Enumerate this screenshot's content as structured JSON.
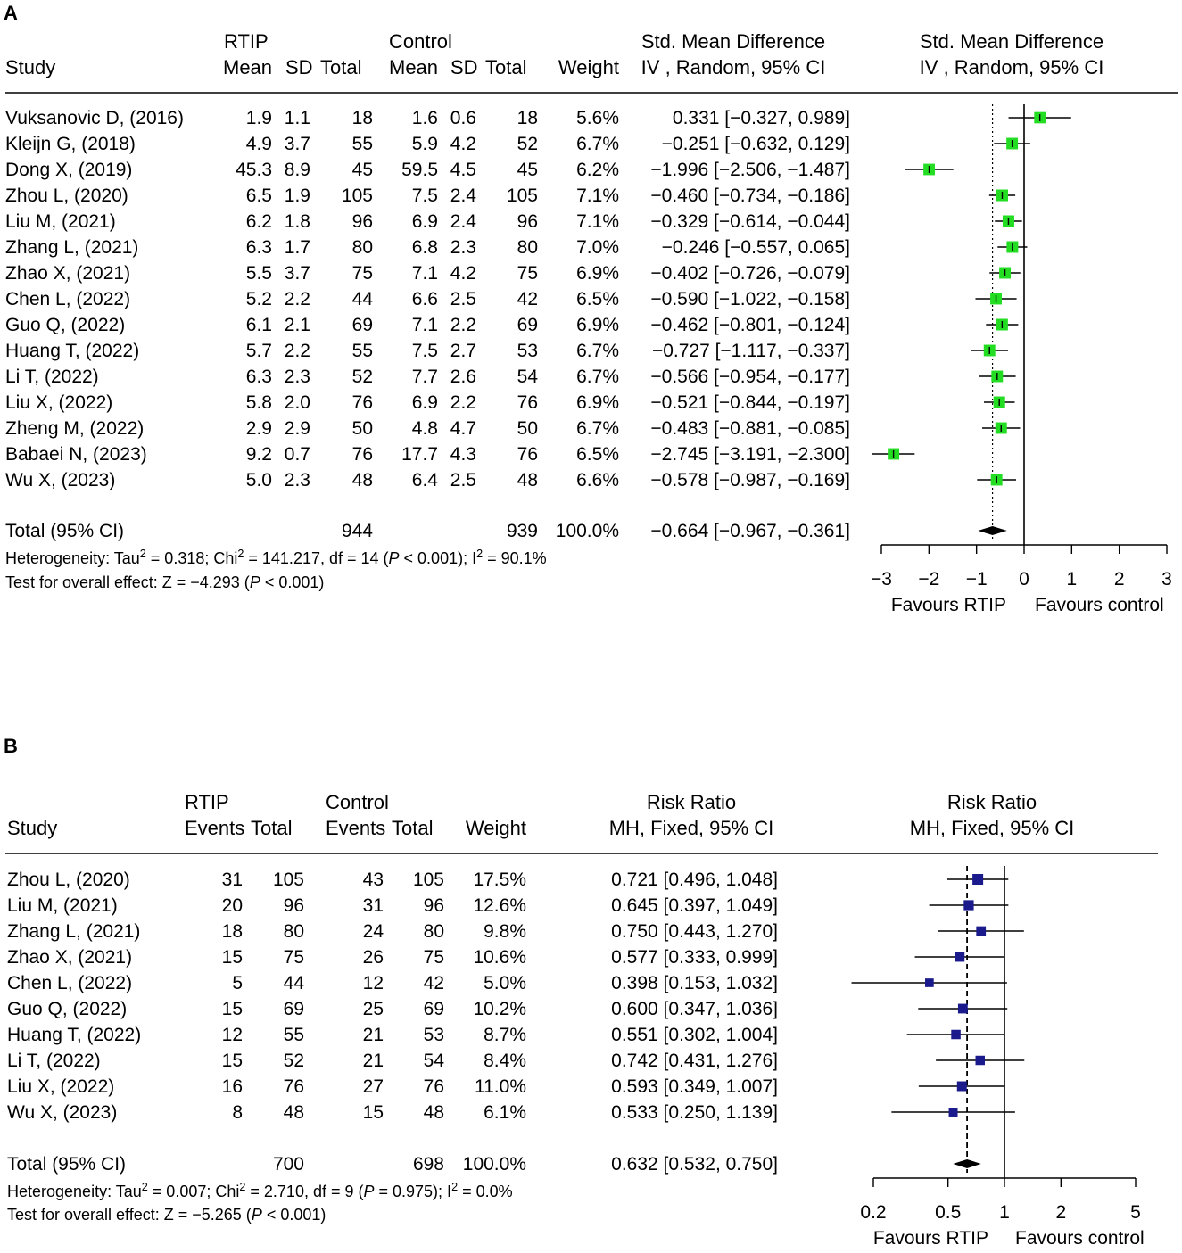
{
  "chart_data": [
    {
      "type": "forest",
      "panel_label": "A",
      "effect_measure": "Std. Mean Difference",
      "method": "IV, Random, 95% CI",
      "scale": "linear",
      "headers": {
        "group1": "RTIP",
        "group2": "Control",
        "study": "Study",
        "mean": "Mean",
        "sd": "SD",
        "total": "Total",
        "weight": "Weight",
        "effect_title": "Std. Mean Difference",
        "effect_sub": "IV , Random, 95% CI",
        "plot_title": "Std. Mean Difference",
        "plot_sub": "IV , Random, 95% CI"
      },
      "studies": [
        {
          "study": "Vuksanovic D, (2016)",
          "m1": "1.9",
          "sd1": "1.1",
          "n1": "18",
          "m2": "1.6",
          "sd2": "0.6",
          "n2": "18",
          "weight": "5.6%",
          "ci_text": "0.331 [−0.327,  0.989]",
          "est": 0.331,
          "lo": -0.327,
          "hi": 0.989,
          "w": 5.6
        },
        {
          "study": "Kleijn G, (2018)",
          "m1": "4.9",
          "sd1": "3.7",
          "n1": "55",
          "m2": "5.9",
          "sd2": "4.2",
          "n2": "52",
          "weight": "6.7%",
          "ci_text": "−0.251 [−0.632,  0.129]",
          "est": -0.251,
          "lo": -0.632,
          "hi": 0.129,
          "w": 6.7
        },
        {
          "study": "Dong X, (2019)",
          "m1": "45.3",
          "sd1": "8.9",
          "n1": "45",
          "m2": "59.5",
          "sd2": "4.5",
          "n2": "45",
          "weight": "6.2%",
          "ci_text": "−1.996 [−2.506, −1.487]",
          "est": -1.996,
          "lo": -2.506,
          "hi": -1.487,
          "w": 6.2
        },
        {
          "study": "Zhou L, (2020)",
          "m1": "6.5",
          "sd1": "1.9",
          "n1": "105",
          "m2": "7.5",
          "sd2": "2.4",
          "n2": "105",
          "weight": "7.1%",
          "ci_text": "−0.460 [−0.734, −0.186]",
          "est": -0.46,
          "lo": -0.734,
          "hi": -0.186,
          "w": 7.1
        },
        {
          "study": "Liu M, (2021)",
          "m1": "6.2",
          "sd1": "1.8",
          "n1": "96",
          "m2": "6.9",
          "sd2": "2.4",
          "n2": "96",
          "weight": "7.1%",
          "ci_text": "−0.329 [−0.614, −0.044]",
          "est": -0.329,
          "lo": -0.614,
          "hi": -0.044,
          "w": 7.1
        },
        {
          "study": "Zhang L, (2021)",
          "m1": "6.3",
          "sd1": "1.7",
          "n1": "80",
          "m2": "6.8",
          "sd2": "2.3",
          "n2": "80",
          "weight": "7.0%",
          "ci_text": "−0.246 [−0.557,  0.065]",
          "est": -0.246,
          "lo": -0.557,
          "hi": 0.065,
          "w": 7.0
        },
        {
          "study": "Zhao X, (2021)",
          "m1": "5.5",
          "sd1": "3.7",
          "n1": "75",
          "m2": "7.1",
          "sd2": "4.2",
          "n2": "75",
          "weight": "6.9%",
          "ci_text": "−0.402 [−0.726, −0.079]",
          "est": -0.402,
          "lo": -0.726,
          "hi": -0.079,
          "w": 6.9
        },
        {
          "study": "Chen L, (2022)",
          "m1": "5.2",
          "sd1": "2.2",
          "n1": "44",
          "m2": "6.6",
          "sd2": "2.5",
          "n2": "42",
          "weight": "6.5%",
          "ci_text": "−0.590 [−1.022, −0.158]",
          "est": -0.59,
          "lo": -1.022,
          "hi": -0.158,
          "w": 6.5
        },
        {
          "study": "Guo Q, (2022)",
          "m1": "6.1",
          "sd1": "2.1",
          "n1": "69",
          "m2": "7.1",
          "sd2": "2.2",
          "n2": "69",
          "weight": "6.9%",
          "ci_text": "−0.462 [−0.801, −0.124]",
          "est": -0.462,
          "lo": -0.801,
          "hi": -0.124,
          "w": 6.9
        },
        {
          "study": "Huang T, (2022)",
          "m1": "5.7",
          "sd1": "2.2",
          "n1": "55",
          "m2": "7.5",
          "sd2": "2.7",
          "n2": "53",
          "weight": "6.7%",
          "ci_text": "−0.727 [−1.117, −0.337]",
          "est": -0.727,
          "lo": -1.117,
          "hi": -0.337,
          "w": 6.7
        },
        {
          "study": "Li T, (2022)",
          "m1": "6.3",
          "sd1": "2.3",
          "n1": "52",
          "m2": "7.7",
          "sd2": "2.6",
          "n2": "54",
          "weight": "6.7%",
          "ci_text": "−0.566 [−0.954, −0.177]",
          "est": -0.566,
          "lo": -0.954,
          "hi": -0.177,
          "w": 6.7
        },
        {
          "study": "Liu X, (2022)",
          "m1": "5.8",
          "sd1": "2.0",
          "n1": "76",
          "m2": "6.9",
          "sd2": "2.2",
          "n2": "76",
          "weight": "6.9%",
          "ci_text": "−0.521 [−0.844, −0.197]",
          "est": -0.521,
          "lo": -0.844,
          "hi": -0.197,
          "w": 6.9
        },
        {
          "study": "Zheng M, (2022)",
          "m1": "2.9",
          "sd1": "2.9",
          "n1": "50",
          "m2": "4.8",
          "sd2": "4.7",
          "n2": "50",
          "weight": "6.7%",
          "ci_text": "−0.483 [−0.881, −0.085]",
          "est": -0.483,
          "lo": -0.881,
          "hi": -0.085,
          "w": 6.7
        },
        {
          "study": "Babaei N, (2023)",
          "m1": "9.2",
          "sd1": "0.7",
          "n1": "76",
          "m2": "17.7",
          "sd2": "4.3",
          "n2": "76",
          "weight": "6.5%",
          "ci_text": "−2.745 [−3.191, −2.300]",
          "est": -2.745,
          "lo": -3.191,
          "hi": -2.3,
          "w": 6.5
        },
        {
          "study": "Wu X, (2023)",
          "m1": "5.0",
          "sd1": "2.3",
          "n1": "48",
          "m2": "6.4",
          "sd2": "2.5",
          "n2": "48",
          "weight": "6.6%",
          "ci_text": "−0.578 [−0.987, −0.169]",
          "est": -0.578,
          "lo": -0.987,
          "hi": -0.169,
          "w": 6.6
        }
      ],
      "total": {
        "label": "Total (95% CI)",
        "n1": "944",
        "n2": "939",
        "weight": "100.0%",
        "ci_text": "−0.664 [−0.967, −0.361]",
        "est": -0.664,
        "lo": -0.967,
        "hi": -0.361
      },
      "heterogeneity": {
        "label": "Heterogeneity:",
        "tau2": "0.318",
        "chi2": "141.217",
        "df": "14",
        "p": "0.001",
        "i2": "90.1%"
      },
      "overall": {
        "label": "Test for overall effect:",
        "z": "−4.293",
        "p": "0.001"
      },
      "axis": {
        "min": -3,
        "max": 3,
        "ticks": [
          -3,
          -2,
          -1,
          0,
          1,
          2,
          3
        ],
        "tick_labels": [
          "−3",
          "−2",
          "−1",
          "0",
          "1",
          "2",
          "3"
        ]
      },
      "favours_left": "Favours RTIP",
      "favours_right": "Favours control",
      "marker_color": "#22dd22",
      "marker_edge": "#000000"
    },
    {
      "type": "forest",
      "panel_label": "B",
      "effect_measure": "Risk Ratio",
      "method": "MH, Fixed, 95% CI",
      "scale": "log",
      "headers": {
        "group1": "RTIP",
        "group2": "Control",
        "study": "Study",
        "events": "Events",
        "total": "Total",
        "weight": "Weight",
        "effect_title": "Risk Ratio",
        "effect_sub": "MH, Fixed, 95% CI",
        "plot_title": "Risk Ratio",
        "plot_sub": "MH, Fixed, 95% CI"
      },
      "studies": [
        {
          "study": "Zhou L, (2020)",
          "e1": "31",
          "n1": "105",
          "e2": "43",
          "n2": "105",
          "weight": "17.5%",
          "ci_text": "0.721 [0.496, 1.048]",
          "est": 0.721,
          "lo": 0.496,
          "hi": 1.048,
          "w": 17.5
        },
        {
          "study": "Liu M, (2021)",
          "e1": "20",
          "n1": "96",
          "e2": "31",
          "n2": "96",
          "weight": "12.6%",
          "ci_text": "0.645 [0.397, 1.049]",
          "est": 0.645,
          "lo": 0.397,
          "hi": 1.049,
          "w": 12.6
        },
        {
          "study": "Zhang L, (2021)",
          "e1": "18",
          "n1": "80",
          "e2": "24",
          "n2": "80",
          "weight": "9.8%",
          "ci_text": "0.750 [0.443, 1.270]",
          "est": 0.75,
          "lo": 0.443,
          "hi": 1.27,
          "w": 9.8
        },
        {
          "study": "Zhao X, (2021)",
          "e1": "15",
          "n1": "75",
          "e2": "26",
          "n2": "75",
          "weight": "10.6%",
          "ci_text": "0.577 [0.333, 0.999]",
          "est": 0.577,
          "lo": 0.333,
          "hi": 0.999,
          "w": 10.6
        },
        {
          "study": "Chen L, (2022)",
          "e1": "5",
          "n1": "44",
          "e2": "12",
          "n2": "42",
          "weight": "5.0%",
          "ci_text": "0.398 [0.153, 1.032]",
          "est": 0.398,
          "lo": 0.153,
          "hi": 1.032,
          "w": 5.0
        },
        {
          "study": "Guo Q, (2022)",
          "e1": "15",
          "n1": "69",
          "e2": "25",
          "n2": "69",
          "weight": "10.2%",
          "ci_text": "0.600 [0.347, 1.036]",
          "est": 0.6,
          "lo": 0.347,
          "hi": 1.036,
          "w": 10.2
        },
        {
          "study": "Huang T, (2022)",
          "e1": "12",
          "n1": "55",
          "e2": "21",
          "n2": "53",
          "weight": "8.7%",
          "ci_text": "0.551 [0.302, 1.004]",
          "est": 0.551,
          "lo": 0.302,
          "hi": 1.004,
          "w": 8.7
        },
        {
          "study": "Li T, (2022)",
          "e1": "15",
          "n1": "52",
          "e2": "21",
          "n2": "54",
          "weight": "8.4%",
          "ci_text": "0.742 [0.431, 1.276]",
          "est": 0.742,
          "lo": 0.431,
          "hi": 1.276,
          "w": 8.4
        },
        {
          "study": "Liu X, (2022)",
          "e1": "16",
          "n1": "76",
          "e2": "27",
          "n2": "76",
          "weight": "11.0%",
          "ci_text": "0.593 [0.349, 1.007]",
          "est": 0.593,
          "lo": 0.349,
          "hi": 1.007,
          "w": 11.0
        },
        {
          "study": "Wu X, (2023)",
          "e1": "8",
          "n1": "48",
          "e2": "15",
          "n2": "48",
          "weight": "6.1%",
          "ci_text": "0.533 [0.250, 1.139]",
          "est": 0.533,
          "lo": 0.25,
          "hi": 1.139,
          "w": 6.1
        }
      ],
      "total": {
        "label": "Total (95% CI)",
        "n1": "700",
        "n2": "698",
        "weight": "100.0%",
        "ci_text": "0.632 [0.532, 0.750]",
        "est": 0.632,
        "lo": 0.532,
        "hi": 0.75
      },
      "heterogeneity": {
        "label": "Heterogeneity:",
        "tau2": "0.007",
        "chi2": "2.710",
        "df": "9",
        "p": "0.975",
        "i2": "0.0%"
      },
      "overall": {
        "label": "Test for overall effect:",
        "z": "−5.265",
        "p": "0.001"
      },
      "axis": {
        "min": 0.2,
        "max": 5,
        "ticks": [
          0.2,
          0.5,
          1,
          2,
          5
        ],
        "tick_labels": [
          "0.2",
          "0.5",
          "1",
          "2",
          "5"
        ]
      },
      "favours_left": "Favours RTIP",
      "favours_right": "Favours control",
      "marker_color": "#1a1a8c",
      "marker_edge": "#1a1a8c"
    }
  ]
}
